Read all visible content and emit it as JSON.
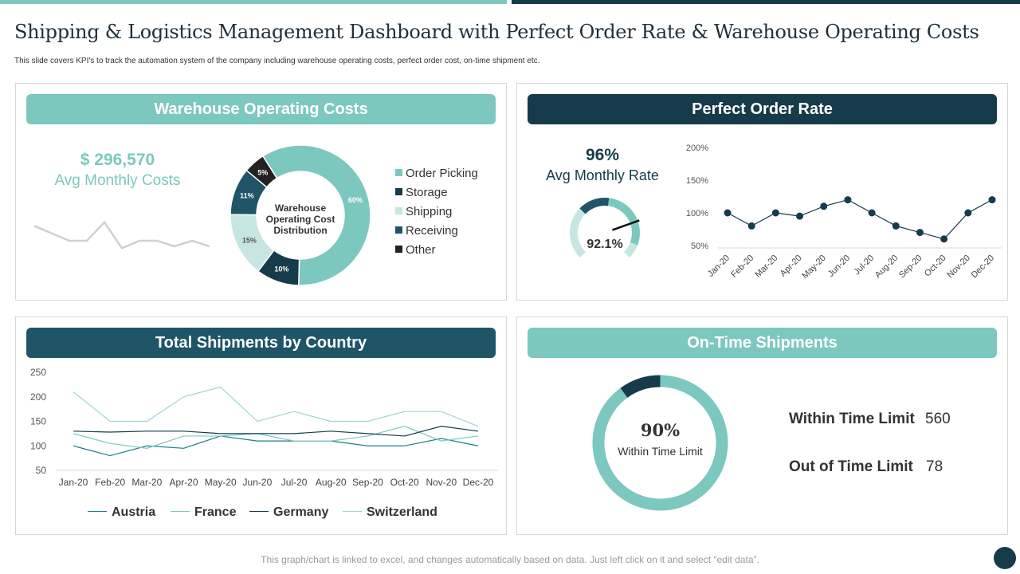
{
  "title": "Shipping &  Logistics Management Dashboard with Perfect Order Rate & Warehouse Operating Costs",
  "subtitle": "This slide covers KPI's to track the automation system of the company including  warehouse operating costs, perfect order cost, on-time shipment etc.",
  "footer": "This graph/chart is linked to excel, and changes automatically based on data. Just left click on it and select “edit data”.",
  "colors": {
    "teal": "#7cc8be",
    "dark": "#163b4a",
    "mid": "#1f5566",
    "light": "#c7e6e2",
    "black": "#222222"
  },
  "warehouse": {
    "header": "Warehouse Operating Costs",
    "value": "$ 296,570",
    "label": "Avg Monthly Costs",
    "donut_center": [
      "Warehouse",
      "Operating Cost",
      "Distribution"
    ]
  },
  "perfect_order": {
    "header": "Perfect Order Rate",
    "value": "96%",
    "label": "Avg Monthly Rate",
    "gauge_value": "92.1%",
    "gauge_fraction": 0.921
  },
  "shipments": {
    "header": "Total Shipments by Country"
  },
  "ontime": {
    "header": "On-Time Shipments",
    "donut_value": "90%",
    "donut_label": "Within Time Limit",
    "within_label": "Within Time Limit",
    "within_value": "560",
    "out_label": "Out of Time Limit",
    "out_value": "78"
  },
  "chart_data": [
    {
      "id": "sparkline",
      "type": "line",
      "title": "",
      "values": [
        100,
        80,
        60,
        60,
        110,
        40,
        60,
        60,
        45,
        60,
        45
      ],
      "ylim": [
        0,
        150
      ]
    },
    {
      "id": "warehouse_donut",
      "type": "pie",
      "title": "Warehouse Operating Cost Distribution",
      "categories": [
        "Order Picking",
        "Storage",
        "Shipping",
        "Receiving",
        "Other"
      ],
      "values": [
        60,
        10,
        15,
        11,
        5
      ],
      "labels": [
        "60%",
        "10%",
        "15%",
        "11%",
        "5%"
      ],
      "colors": [
        "#7cc8be",
        "#163b4a",
        "#c7e6e2",
        "#1f5566",
        "#222222"
      ],
      "legend_position": "right"
    },
    {
      "id": "perfect_order_line",
      "type": "line",
      "title": "",
      "categories": [
        "Jan-20",
        "Feb-20",
        "Mar-20",
        "Apr-20",
        "May-20",
        "Jun-20",
        "Jul-20",
        "Aug-20",
        "Sep-20",
        "Oct-20",
        "Nov-20",
        "Dec-20"
      ],
      "values": [
        100,
        80,
        100,
        95,
        110,
        120,
        100,
        80,
        70,
        60,
        100,
        120
      ],
      "yticks": [
        "200%",
        "150%",
        "100%",
        "50%"
      ],
      "ylim": [
        50,
        200
      ],
      "xlabel": "",
      "ylabel": ""
    },
    {
      "id": "shipments_by_country",
      "type": "line",
      "title": "",
      "categories": [
        "Jan-20",
        "Feb-20",
        "Mar-20",
        "Apr-20",
        "May-20",
        "Jun-20",
        "Jul-20",
        "Aug-20",
        "Sep-20",
        "Oct-20",
        "Nov-20",
        "Dec-20"
      ],
      "yticks": [
        "250",
        "200",
        "150",
        "100",
        "50"
      ],
      "ylim": [
        50,
        250
      ],
      "series": [
        {
          "name": "Austria",
          "color": "#1a7f8a",
          "values": [
            100,
            80,
            100,
            95,
            120,
            110,
            110,
            110,
            100,
            100,
            115,
            100
          ]
        },
        {
          "name": "France",
          "color": "#7cc8be",
          "values": [
            125,
            105,
            95,
            120,
            120,
            125,
            110,
            110,
            120,
            140,
            110,
            120
          ]
        },
        {
          "name": "Germany",
          "color": "#163b4a",
          "values": [
            130,
            128,
            130,
            130,
            125,
            125,
            125,
            130,
            125,
            120,
            140,
            130
          ]
        },
        {
          "name": "Switzerland",
          "color": "#9fd6cf",
          "values": [
            210,
            150,
            150,
            200,
            220,
            150,
            170,
            150,
            150,
            170,
            170,
            140
          ]
        }
      ],
      "legend_position": "bottom"
    },
    {
      "id": "ontime_donut",
      "type": "pie",
      "title": "",
      "categories": [
        "Within Time Limit",
        "Out of Time Limit"
      ],
      "values": [
        90,
        10
      ],
      "colors": [
        "#7cc8be",
        "#163b4a"
      ]
    }
  ]
}
